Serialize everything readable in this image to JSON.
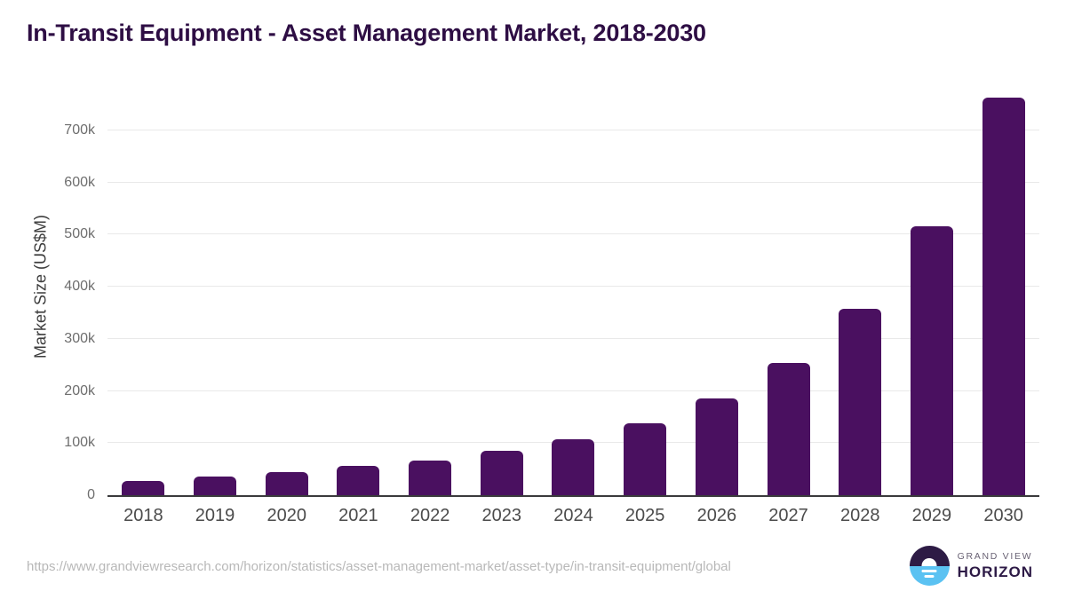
{
  "chart_data": {
    "type": "bar",
    "title": "In-Transit Equipment - Asset Management Market, 2018-2030",
    "ylabel": "Market Size (US$M)",
    "xlabel": "",
    "categories": [
      "2018",
      "2019",
      "2020",
      "2021",
      "2022",
      "2023",
      "2024",
      "2025",
      "2026",
      "2027",
      "2028",
      "2029",
      "2030"
    ],
    "values": [
      28000,
      36000,
      45000,
      56000,
      67000,
      84500,
      107000,
      138000,
      185500,
      254000,
      357500,
      516500,
      762000
    ],
    "ylim": [
      0,
      800000
    ],
    "yticks": [
      {
        "label": "0",
        "value": 0
      },
      {
        "label": "100k",
        "value": 100000
      },
      {
        "label": "200k",
        "value": 200000
      },
      {
        "label": "300k",
        "value": 300000
      },
      {
        "label": "400k",
        "value": 400000
      },
      {
        "label": "500k",
        "value": 500000
      },
      {
        "label": "600k",
        "value": 600000
      },
      {
        "label": "700k",
        "value": 700000
      }
    ],
    "grid": "horizontal",
    "legend_position": "none",
    "bar_corner_radius": 6
  },
  "footer": {
    "source_url": "https://www.grandviewresearch.com/horizon/statistics/asset-management-market/asset-type/in-transit-equipment/global",
    "brand": {
      "line1": "GRAND VIEW",
      "line2": "HORIZON"
    }
  },
  "colors": {
    "background": "#ffffff",
    "title": "#2e0e44",
    "bar": "#4a1060",
    "axis_line": "#3a3a3c",
    "gridline": "#e9e9e9",
    "y_tick_text": "#6e6e6e",
    "x_tick_text": "#4b4b4b",
    "y_axis_title_text": "#3d3d3d",
    "source_text": "#b8b8b8",
    "logo_purple": "#2d1b45",
    "logo_blue": "#5bc2f2",
    "brand_line1_text": "#696274",
    "brand_line2_text": "#2d1a46"
  }
}
